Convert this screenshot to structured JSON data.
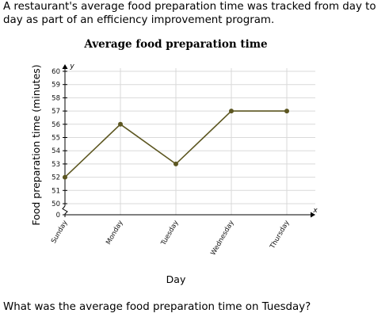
{
  "intro_text": "A restaurant's average food preparation time was tracked from day to day as part of an efficiency improvement program.",
  "question_text": "What was the average food preparation time on Tuesday?",
  "colors": {
    "line": "#5c5620",
    "grid": "#d9d9d9",
    "axis": "#000000"
  },
  "chart_data": {
    "type": "line",
    "title": "Average food preparation time",
    "xlabel": "Day",
    "ylabel": "Food preparation time (minutes)",
    "x_axis_letter": "x",
    "y_axis_letter": "y",
    "categories": [
      "Sunday",
      "Monday",
      "Tuesday",
      "Wednesday",
      "Thursday"
    ],
    "values": [
      52,
      56,
      53,
      57,
      57
    ],
    "y_ticks": [
      0,
      50,
      51,
      52,
      53,
      54,
      55,
      56,
      57,
      58,
      59,
      60
    ],
    "y_break": "between 0 and 50",
    "ylim": [
      50,
      60
    ],
    "grid": true
  }
}
